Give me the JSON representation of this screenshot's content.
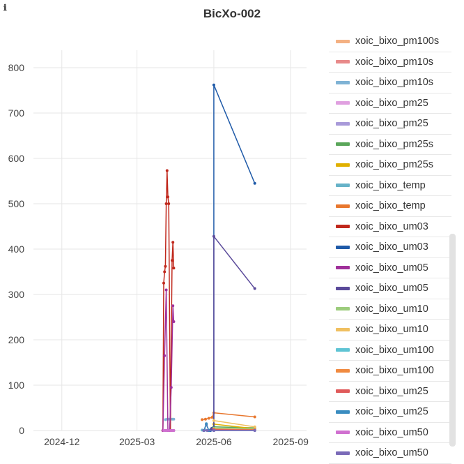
{
  "header": {
    "title": "BicXo-002",
    "info_icon": "info-icon"
  },
  "chart_data": {
    "type": "line",
    "title": "BicXo-002",
    "xlabel": "",
    "ylabel": "",
    "x_ticks": [
      "2024-12",
      "2025-03",
      "2025-06",
      "2025-09"
    ],
    "y_ticks": [
      0,
      100,
      200,
      300,
      400,
      500,
      600,
      700,
      800
    ],
    "ylim": [
      0,
      800
    ],
    "grid": true,
    "legend_position": "right",
    "series": [
      {
        "name": "xoic_bixo_pm100s",
        "color": "#f4b183",
        "x": [
          "2025-04-04",
          "2025-04-06",
          "2025-04-08",
          "2025-04-12",
          "2025-04-14"
        ],
        "y": [
          0,
          0,
          0,
          0,
          0
        ]
      },
      {
        "name": "xoic_bixo_pm10s",
        "color": "#e88a8a",
        "x": [
          "2025-04-04",
          "2025-04-06",
          "2025-04-08",
          "2025-04-12",
          "2025-04-14"
        ],
        "y": [
          0,
          0,
          0,
          0,
          0
        ]
      },
      {
        "name": "xoic_bixo_pm10s",
        "color": "#7fb3d5",
        "x": [
          "2025-04-04",
          "2025-04-06",
          "2025-04-08",
          "2025-04-12",
          "2025-04-14"
        ],
        "y": [
          24,
          25,
          25,
          25,
          25
        ]
      },
      {
        "name": "xoic_bixo_pm25",
        "color": "#e0a0e0",
        "x": [
          "2025-04-04",
          "2025-04-06",
          "2025-04-08",
          "2025-04-12",
          "2025-04-14"
        ],
        "y": [
          0,
          0,
          0,
          0,
          0
        ]
      },
      {
        "name": "xoic_bixo_pm25",
        "color": "#a89ad9",
        "x": [
          "2025-04-04",
          "2025-04-06",
          "2025-04-08",
          "2025-04-12",
          "2025-04-14"
        ],
        "y": [
          0,
          0,
          0,
          0,
          0
        ]
      },
      {
        "name": "xoic_bixo_pm25s",
        "color": "#5aa65a",
        "x": [
          "2025-06-01",
          "2025-07-20"
        ],
        "y": [
          8,
          6
        ]
      },
      {
        "name": "xoic_bixo_pm25s",
        "color": "#e0b000",
        "x": [
          "2025-06-01",
          "2025-07-20"
        ],
        "y": [
          14,
          4
        ]
      },
      {
        "name": "xoic_bixo_temp",
        "color": "#66b2c8",
        "x": [
          "2025-05-18",
          "2025-05-22",
          "2025-05-26",
          "2025-06-01",
          "2025-07-20"
        ],
        "y": [
          1,
          1,
          1,
          1,
          1
        ]
      },
      {
        "name": "xoic_bixo_temp",
        "color": "#e8772e",
        "x": [
          "2025-05-18",
          "2025-05-22",
          "2025-05-26",
          "2025-05-30",
          "2025-06-01",
          "2025-07-20"
        ],
        "y": [
          24,
          25,
          27,
          29,
          39,
          30
        ]
      },
      {
        "name": "xoic_bixo_um03",
        "color": "#c0281c",
        "x": [
          "2025-04-01",
          "2025-04-02",
          "2025-04-03",
          "2025-04-04",
          "2025-04-05",
          "2025-04-06",
          "2025-04-07",
          "2025-04-08",
          "2025-04-10",
          "2025-04-12",
          "2025-04-13",
          "2025-04-14"
        ],
        "y": [
          0,
          325,
          350,
          362,
          500,
          573,
          515,
          500,
          0,
          375,
          415,
          358
        ]
      },
      {
        "name": "xoic_bixo_um03",
        "color": "#1f5aa8",
        "x": [
          "2025-05-26",
          "2025-05-28",
          "2025-05-30",
          "2025-06-01",
          "2025-06-01",
          "2025-07-20"
        ],
        "y": [
          0,
          0,
          5,
          0,
          762,
          545
        ]
      },
      {
        "name": "xoic_bixo_um05",
        "color": "#a0309a",
        "x": [
          "2025-04-01",
          "2025-04-03",
          "2025-04-05",
          "2025-04-07",
          "2025-04-09",
          "2025-04-11",
          "2025-04-13",
          "2025-04-14"
        ],
        "y": [
          0,
          165,
          310,
          0,
          0,
          95,
          275,
          240
        ]
      },
      {
        "name": "xoic_bixo_um05",
        "color": "#5a4a9a",
        "x": [
          "2025-05-20",
          "2025-05-23",
          "2025-05-26",
          "2025-05-29",
          "2025-06-01",
          "2025-06-01",
          "2025-07-20"
        ],
        "y": [
          0,
          13,
          0,
          4,
          0,
          428,
          313
        ]
      },
      {
        "name": "xoic_bixo_um10",
        "color": "#9ccc7c",
        "x": [
          "2025-06-01",
          "2025-07-20"
        ],
        "y": [
          5,
          4
        ]
      },
      {
        "name": "xoic_bixo_um10",
        "color": "#f0c060",
        "x": [
          "2025-06-01",
          "2025-07-20"
        ],
        "y": [
          22,
          8
        ]
      },
      {
        "name": "xoic_bixo_um100",
        "color": "#5fc4d4",
        "x": [
          "2025-06-01",
          "2025-07-20"
        ],
        "y": [
          2,
          1
        ]
      },
      {
        "name": "xoic_bixo_um100",
        "color": "#f08a40",
        "x": [
          "2025-06-01",
          "2025-07-20"
        ],
        "y": [
          3,
          2
        ]
      },
      {
        "name": "xoic_bixo_um25",
        "color": "#e05a5a",
        "x": [
          "2025-06-01",
          "2025-07-20"
        ],
        "y": [
          2,
          1
        ]
      },
      {
        "name": "xoic_bixo_um25",
        "color": "#3a8cc0",
        "x": [
          "2025-05-20",
          "2025-05-23",
          "2025-05-26",
          "2025-06-01",
          "2025-07-20"
        ],
        "y": [
          0,
          15,
          0,
          0,
          0
        ]
      },
      {
        "name": "xoic_bixo_um50",
        "color": "#d070d0",
        "x": [
          "2025-04-02",
          "2025-04-04",
          "2025-04-06",
          "2025-04-08",
          "2025-04-10",
          "2025-04-12",
          "2025-04-14"
        ],
        "y": [
          0,
          0,
          0,
          0,
          0,
          0,
          0
        ]
      },
      {
        "name": "xoic_bixo_um50",
        "color": "#7a6ab8",
        "x": [
          "2025-05-20",
          "2025-05-24",
          "2025-06-01",
          "2025-07-20"
        ],
        "y": [
          0,
          0,
          0,
          0
        ]
      }
    ]
  }
}
